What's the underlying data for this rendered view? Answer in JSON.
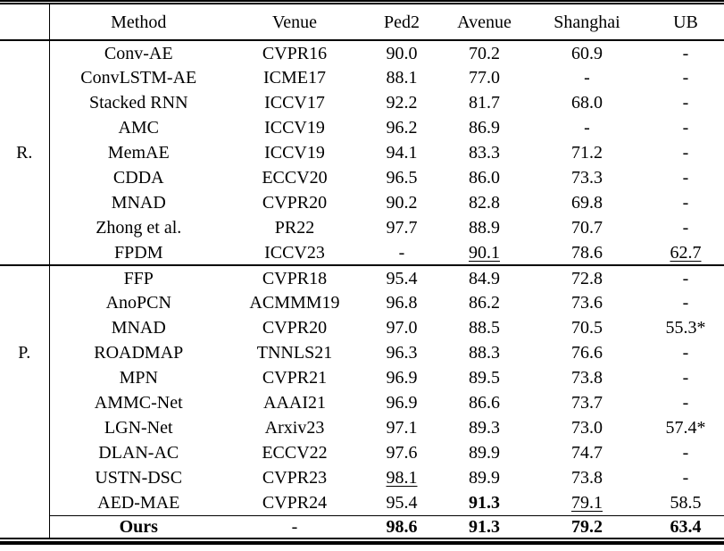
{
  "table": {
    "headers": [
      "Method",
      "Venue",
      "Ped2",
      "Avenue",
      "Shanghai",
      "UB"
    ],
    "groups": [
      {
        "label": "R.",
        "label_row": 4,
        "rows": [
          [
            "Conv-AE",
            "CVPR16",
            "90.0",
            "70.2",
            "60.9",
            "-"
          ],
          [
            "ConvLSTM-AE",
            "ICME17",
            "88.1",
            "77.0",
            "-",
            "-"
          ],
          [
            "Stacked RNN",
            "ICCV17",
            "92.2",
            "81.7",
            "68.0",
            "-"
          ],
          [
            "AMC",
            "ICCV19",
            "96.2",
            "86.9",
            "-",
            "-"
          ],
          [
            "MemAE",
            "ICCV19",
            "94.1",
            "83.3",
            "71.2",
            "-"
          ],
          [
            "CDDA",
            "ECCV20",
            "96.5",
            "86.0",
            "73.3",
            "-"
          ],
          [
            "MNAD",
            "CVPR20",
            "90.2",
            "82.8",
            "69.8",
            "-"
          ],
          [
            "Zhong et al.",
            "PR22",
            "97.7",
            "88.9",
            "70.7",
            "-"
          ],
          [
            "FPDM",
            "ICCV23",
            "-",
            {
              "t": "90.1",
              "u": true
            },
            "78.6",
            {
              "t": "62.7",
              "u": true
            }
          ]
        ]
      },
      {
        "label": "P.",
        "label_row": 3,
        "rows": [
          [
            "FFP",
            "CVPR18",
            "95.4",
            "84.9",
            "72.8",
            "-"
          ],
          [
            "AnoPCN",
            "ACMMM19",
            "96.8",
            "86.2",
            "73.6",
            "-"
          ],
          [
            "MNAD",
            "CVPR20",
            "97.0",
            "88.5",
            "70.5",
            "55.3*"
          ],
          [
            "ROADMAP",
            "TNNLS21",
            "96.3",
            "88.3",
            "76.6",
            "-"
          ],
          [
            "MPN",
            "CVPR21",
            "96.9",
            "89.5",
            "73.8",
            "-"
          ],
          [
            "AMMC-Net",
            "AAAI21",
            "96.9",
            "86.6",
            "73.7",
            "-"
          ],
          [
            "LGN-Net",
            "Arxiv23",
            "97.1",
            "89.3",
            "73.0",
            "57.4*"
          ],
          [
            "DLAN-AC",
            "ECCV22",
            "97.6",
            "89.9",
            "74.7",
            "-"
          ],
          [
            "USTN-DSC",
            "CVPR23",
            {
              "t": "98.1",
              "u": true
            },
            "89.9",
            "73.8",
            "-"
          ],
          [
            "AED-MAE",
            "CVPR24",
            "95.4",
            {
              "t": "91.3",
              "b": true
            },
            {
              "t": "79.1",
              "u": true
            },
            "58.5"
          ]
        ]
      }
    ],
    "final_row": [
      {
        "t": "Ours",
        "b": true
      },
      "-",
      {
        "t": "98.6",
        "b": true
      },
      {
        "t": "91.3",
        "b": true
      },
      {
        "t": "79.2",
        "b": true
      },
      {
        "t": "63.4",
        "b": true
      }
    ]
  }
}
